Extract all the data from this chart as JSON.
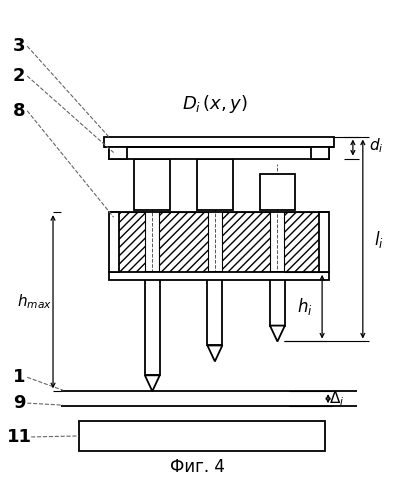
{
  "bg_color": "#ffffff",
  "line_color": "#000000",
  "fig_width": 3.94,
  "fig_height": 5.0,
  "dpi": 100,
  "caption": "Фиг. 4"
}
